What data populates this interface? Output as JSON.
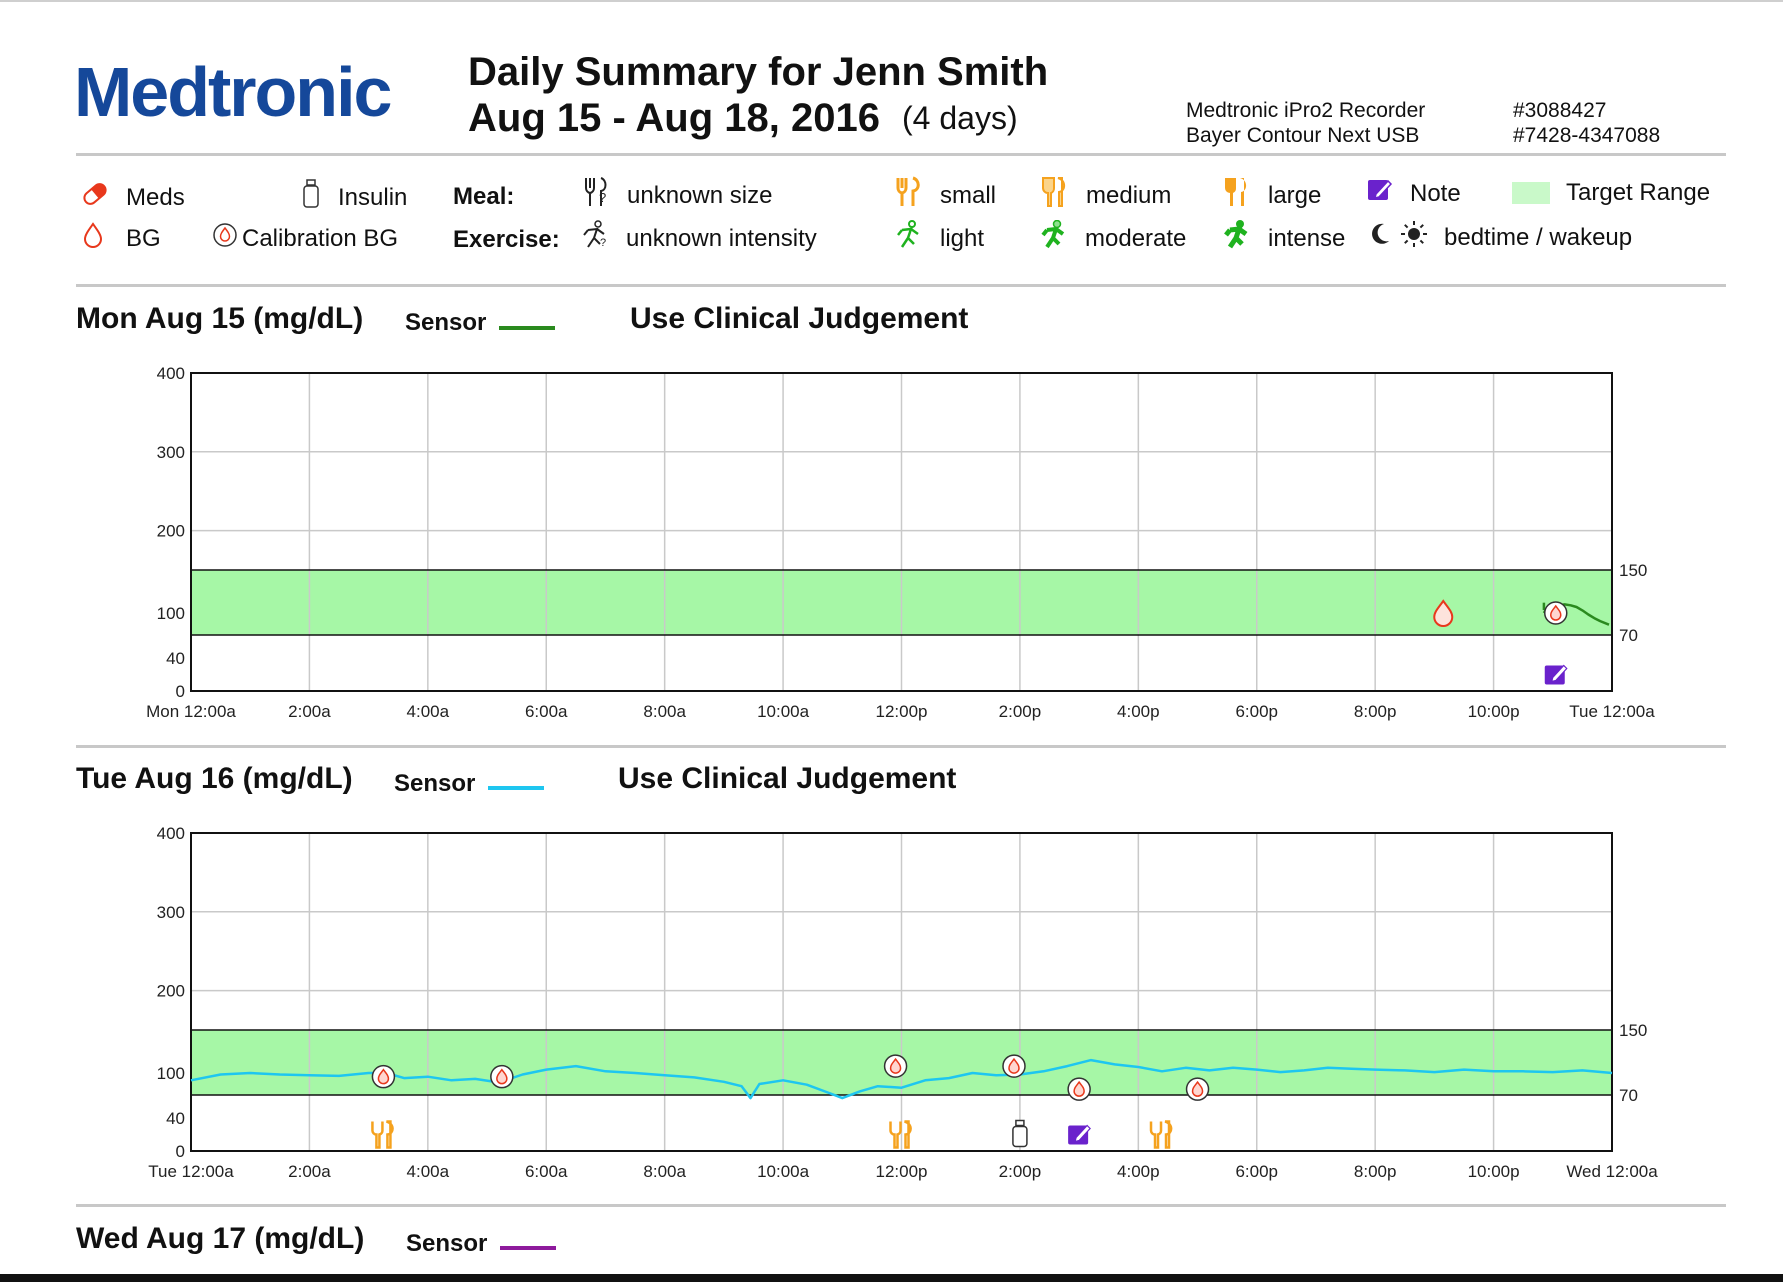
{
  "header": {
    "logo": "Medtronic",
    "title": "Daily Summary for Jenn Smith",
    "date_range": "Aug 15 - Aug 18, 2016",
    "days": "(4 days)",
    "device_name": "Medtronic iPro2 Recorder",
    "device_serial": "#3088427",
    "meter_name": "Bayer Contour Next USB",
    "meter_serial": "#7428-4347088"
  },
  "legend": {
    "meds": "Meds",
    "insulin": "Insulin",
    "bg": "BG",
    "calibration_bg": "Calibration BG",
    "meal_label": "Meal:",
    "exercise_label": "Exercise:",
    "meal_unknown": "unknown size",
    "meal_small": "small",
    "meal_medium": "medium",
    "meal_large": "large",
    "ex_unknown": "unknown intensity",
    "ex_light": "light",
    "ex_moderate": "moderate",
    "ex_intense": "intense",
    "note": "Note",
    "target_range": "Target Range",
    "bedtime_wakeup": "bedtime / wakeup"
  },
  "colors": {
    "brand": "#15489a",
    "target_range": "#a6f7a6",
    "sensor_day1": "#2a8a1e",
    "sensor_day2": "#1ec6f0",
    "sensor_day3": "#8e1a9c",
    "meds": "#e8381c",
    "meal": "#f5a21e",
    "exercise": "#1fb21f",
    "note": "#6a22cc"
  },
  "chart_data": [
    {
      "type": "line",
      "section_title": "Mon Aug 15 (mg/dL)",
      "sensor_label": "Sensor",
      "notice": "Use Clinical Judgement",
      "x_ticks": [
        "Mon 12:00a",
        "2:00a",
        "4:00a",
        "6:00a",
        "8:00a",
        "10:00a",
        "12:00p",
        "2:00p",
        "4:00p",
        "6:00p",
        "8:00p",
        "10:00p",
        "Tue 12:00a"
      ],
      "y_ticks": [
        0,
        40,
        100,
        200,
        300,
        400
      ],
      "ylim": [
        0,
        400
      ],
      "xlim_hours": [
        0,
        24
      ],
      "target_range": [
        70,
        150
      ],
      "target_labels": [
        "150",
        "70"
      ],
      "series": [
        {
          "x_hours": [
            22.85,
            22.9,
            23.0,
            23.1,
            23.2,
            23.3,
            23.4,
            23.5,
            23.6,
            23.7,
            23.8,
            23.95
          ],
          "values": [
            100,
            106,
            107,
            109,
            110,
            109,
            107,
            103,
            98,
            93,
            89,
            84
          ]
        }
      ],
      "bg": [
        {
          "x_hours": 21.15,
          "value": 100
        }
      ],
      "calibration_bg": [
        {
          "x_hours": 23.05,
          "value": 100
        }
      ],
      "notes": [
        {
          "x_hours": 23.05
        }
      ],
      "meals": [],
      "insulin": []
    },
    {
      "type": "line",
      "section_title": "Tue Aug 16 (mg/dL)",
      "sensor_label": "Sensor",
      "notice": "Use Clinical Judgement",
      "x_ticks": [
        "Tue 12:00a",
        "2:00a",
        "4:00a",
        "6:00a",
        "8:00a",
        "10:00a",
        "12:00p",
        "2:00p",
        "4:00p",
        "6:00p",
        "8:00p",
        "10:00p",
        "Wed 12:00a"
      ],
      "y_ticks": [
        0,
        40,
        100,
        200,
        300,
        400
      ],
      "ylim": [
        0,
        400
      ],
      "xlim_hours": [
        0,
        24
      ],
      "target_range": [
        70,
        150
      ],
      "target_labels": [
        "150",
        "70"
      ],
      "series": [
        {
          "x_hours": [
            0,
            0.5,
            1.0,
            1.5,
            2.0,
            2.5,
            3.0,
            3.3,
            3.6,
            4.0,
            4.4,
            4.8,
            5.2,
            5.6,
            6.0,
            6.5,
            7.0,
            7.5,
            8.0,
            8.5,
            9.0,
            9.3,
            9.45,
            9.6,
            10.0,
            10.4,
            10.8,
            11.0,
            11.3,
            11.6,
            12.0,
            12.4,
            12.8,
            13.2,
            13.6,
            14.0,
            14.4,
            14.8,
            15.2,
            15.6,
            16.0,
            16.4,
            16.8,
            17.2,
            17.6,
            18.0,
            18.4,
            18.8,
            19.2,
            19.6,
            20.0,
            20.5,
            21.0,
            21.5,
            22.0,
            22.5,
            23.0,
            23.5,
            24.0
          ],
          "values": [
            90,
            98,
            100,
            98,
            97,
            96,
            100,
            100,
            93,
            95,
            90,
            92,
            87,
            98,
            104,
            108,
            102,
            100,
            97,
            94,
            88,
            82,
            66,
            85,
            90,
            84,
            72,
            66,
            75,
            82,
            80,
            90,
            93,
            100,
            97,
            98,
            102,
            108,
            115,
            110,
            107,
            102,
            106,
            103,
            106,
            104,
            101,
            103,
            106,
            105,
            104,
            103,
            101,
            104,
            102,
            102,
            101,
            103,
            100
          ]
        }
      ],
      "bg": [],
      "calibration_bg": [
        {
          "x_hours": 3.25,
          "value": 95
        },
        {
          "x_hours": 5.25,
          "value": 95
        },
        {
          "x_hours": 11.9,
          "value": 108
        },
        {
          "x_hours": 13.9,
          "value": 108
        },
        {
          "x_hours": 15.0,
          "value": 78
        },
        {
          "x_hours": 17.0,
          "value": 78
        }
      ],
      "notes": [
        {
          "x_hours": 15.0
        }
      ],
      "meals": [
        {
          "x_hours": 3.25
        },
        {
          "x_hours": 12.0
        },
        {
          "x_hours": 16.4
        }
      ],
      "insulin": [
        {
          "x_hours": 14.0
        }
      ]
    },
    {
      "type": "line",
      "section_title": "Wed Aug 17 (mg/dL)",
      "sensor_label": "Sensor"
    }
  ]
}
